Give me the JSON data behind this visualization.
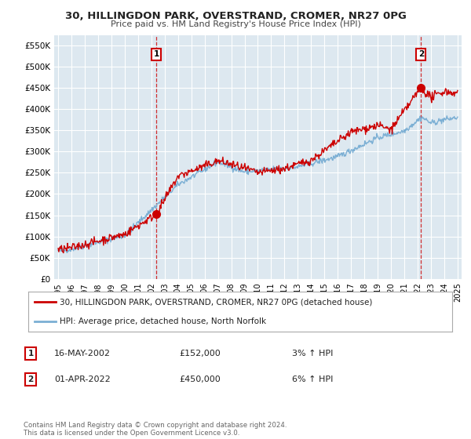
{
  "title": "30, HILLINGDON PARK, OVERSTRAND, CROMER, NR27 0PG",
  "subtitle": "Price paid vs. HM Land Registry's House Price Index (HPI)",
  "ylim": [
    0,
    575000
  ],
  "yticks": [
    0,
    50000,
    100000,
    150000,
    200000,
    250000,
    300000,
    350000,
    400000,
    450000,
    500000,
    550000
  ],
  "ytick_labels": [
    "£0",
    "£50K",
    "£100K",
    "£150K",
    "£200K",
    "£250K",
    "£300K",
    "£350K",
    "£400K",
    "£450K",
    "£500K",
    "£550K"
  ],
  "background_color": "#ffffff",
  "plot_bg_color": "#dde8f0",
  "grid_color": "#ffffff",
  "sale1_date_num": 2002.37,
  "sale1_price": 152000,
  "sale2_date_num": 2022.25,
  "sale2_price": 450000,
  "legend_line1": "30, HILLINGDON PARK, OVERSTRAND, CROMER, NR27 0PG (detached house)",
  "legend_line2": "HPI: Average price, detached house, North Norfolk",
  "annotation1_date": "16-MAY-2002",
  "annotation1_price": "£152,000",
  "annotation1_hpi": "3% ↑ HPI",
  "annotation2_date": "01-APR-2022",
  "annotation2_price": "£450,000",
  "annotation2_hpi": "6% ↑ HPI",
  "footnote": "Contains HM Land Registry data © Crown copyright and database right 2024.\nThis data is licensed under the Open Government Licence v3.0.",
  "hpi_color": "#7bafd4",
  "price_color": "#cc0000",
  "marker_color": "#cc0000",
  "box_color": "#cc0000"
}
